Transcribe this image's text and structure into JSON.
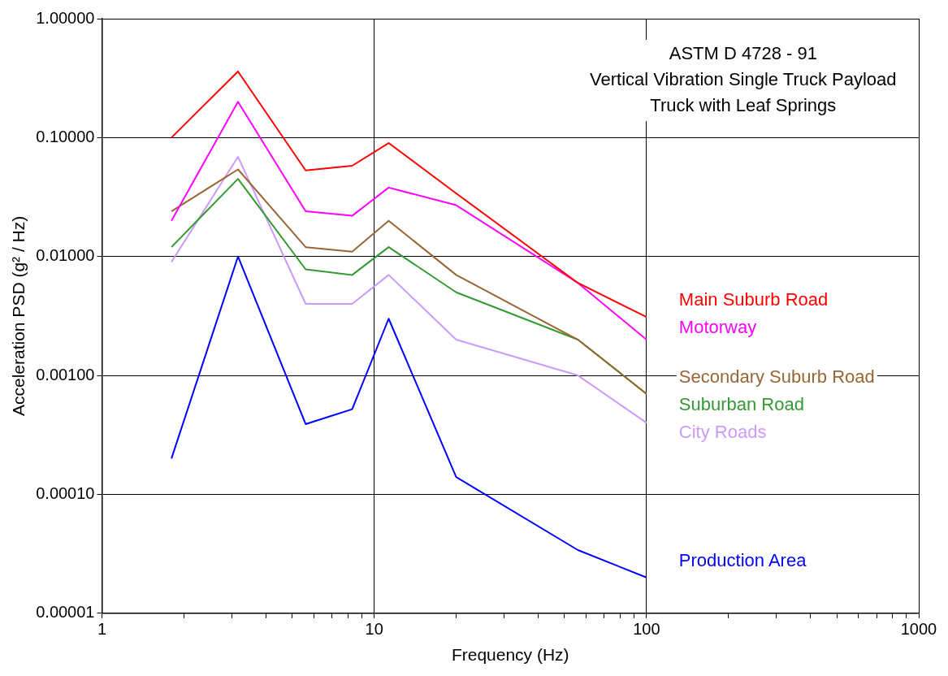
{
  "chart_data": {
    "type": "line",
    "title": "ASTM D 4728 - 91",
    "subtitle": "Vertical Vibration Single Truck Payload",
    "annotations": [
      "Truck with Leaf Springs"
    ],
    "xlabel": "Frequency (Hz)",
    "ylabel": "Acceleration PSD (g² / Hz)",
    "log": "xy",
    "grid": true,
    "legend": false,
    "marker": "none",
    "line_style": "solid",
    "x": [
      1.8,
      3.16,
      5.6,
      8.3,
      11.3,
      20,
      56,
      100
    ],
    "xlim": [
      1,
      1000
    ],
    "xticks": [
      1,
      {
        "value": 2,
        "label": null
      },
      {
        "value": 3,
        "label": null
      },
      {
        "value": 4,
        "label": null
      },
      {
        "value": 5,
        "label": null
      },
      {
        "value": 6,
        "label": null
      },
      {
        "value": 7,
        "label": null
      },
      {
        "value": 8,
        "label": null
      },
      {
        "value": 9,
        "label": null
      },
      10,
      {
        "value": 20,
        "label": null
      },
      {
        "value": 30,
        "label": null
      },
      {
        "value": 40,
        "label": null
      },
      {
        "value": 50,
        "label": null
      },
      {
        "value": 60,
        "label": null
      },
      {
        "value": 70,
        "label": null
      },
      {
        "value": 80,
        "label": null
      },
      {
        "value": 90,
        "label": null
      },
      100,
      {
        "value": 200,
        "label": null
      },
      {
        "value": 300,
        "label": null
      },
      {
        "value": 400,
        "label": null
      },
      {
        "value": 500,
        "label": null
      },
      {
        "value": 600,
        "label": null
      },
      {
        "value": 700,
        "label": null
      },
      {
        "value": 800,
        "label": null
      },
      {
        "value": 900,
        "label": null
      },
      1000
    ],
    "ylim": [
      1e-05,
      1
    ],
    "yticks": [
      {
        "value": 1e-05,
        "label": "0.00001"
      },
      {
        "value": 0.0001,
        "label": "0.00010"
      },
      {
        "value": 0.001,
        "label": "0.00100"
      },
      {
        "value": 0.01,
        "label": "0.01000"
      },
      {
        "value": 0.1,
        "label": "0.10000"
      },
      {
        "value": 1,
        "label": "1.00000"
      }
    ],
    "series": [
      {
        "name": "Main Suburb Road",
        "color": "#ff0000",
        "values": [
          0.1,
          0.36,
          0.053,
          0.058,
          0.09,
          0.034,
          0.006,
          0.0031
        ]
      },
      {
        "name": "Motorway",
        "color": "#ff00ff",
        "values": [
          0.02,
          0.2,
          0.024,
          0.022,
          0.038,
          0.027,
          0.006,
          0.002
        ]
      },
      {
        "name": "Secondary Suburb Road",
        "color": "#996633",
        "values": [
          0.024,
          0.054,
          0.012,
          0.011,
          0.02,
          0.007,
          0.002,
          0.0007
        ]
      },
      {
        "name": "Suburban Road",
        "color": "#339933",
        "values": [
          0.012,
          0.045,
          0.0078,
          0.007,
          0.012,
          0.005,
          0.002,
          0.0007
        ]
      },
      {
        "name": "City Roads",
        "color": "#cc99ff",
        "values": [
          0.009,
          0.069,
          0.004,
          0.004,
          0.007,
          0.002,
          0.001,
          0.0004
        ]
      },
      {
        "name": "Production Area",
        "color": "#0000ff",
        "values": [
          0.0002,
          0.01,
          0.00039,
          0.00052,
          0.003,
          0.00014,
          3.4e-05,
          2e-05
        ]
      }
    ]
  }
}
